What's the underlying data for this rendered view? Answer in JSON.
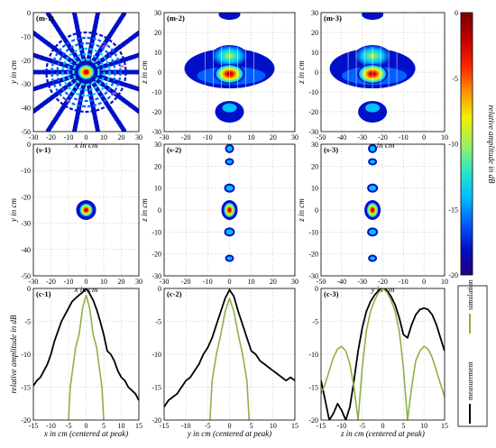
{
  "colors": {
    "measurement": "#000000",
    "simulation": "#8fb04a",
    "colormap": [
      "#20007a",
      "#0010c8",
      "#0060ff",
      "#00c0ff",
      "#30e8c0",
      "#a0f060",
      "#f0f000",
      "#ff9000",
      "#ff2000",
      "#c00000",
      "#7a0000"
    ]
  },
  "colorbar": {
    "label": "relative amplitude in dB",
    "ticks": [
      "0",
      "-5",
      "-10",
      "-15",
      "-20"
    ],
    "range": [
      -20,
      0
    ]
  },
  "legend": {
    "measurement": "measurement",
    "simulation": "simulation"
  },
  "chart_data": [
    {
      "id": "m-1",
      "type": "heatmap",
      "label": "(m-1)",
      "xlabel": "x in cm",
      "ylabel": "y in cm",
      "xlim": [
        -30,
        30
      ],
      "ylim": [
        -50,
        0
      ],
      "xticks": [
        "-30",
        "-20",
        "-10",
        "0",
        "10",
        "20",
        "30"
      ],
      "yticks": [
        "0",
        "-10",
        "-20",
        "-30",
        "-40",
        "-50"
      ],
      "peak": [
        0,
        -25
      ],
      "peak_db": 0
    },
    {
      "id": "m-2",
      "type": "heatmap",
      "label": "(m-2)",
      "xlabel": "",
      "ylabel": "z in cm",
      "xlim": [
        -30,
        30
      ],
      "ylim": [
        -30,
        30
      ],
      "xticks": [
        "-30",
        "-20",
        "-10",
        "0",
        "10",
        "20",
        "30"
      ],
      "yticks": [
        "30",
        "20",
        "10",
        "0",
        "-10",
        "-20",
        "-30"
      ],
      "peak": [
        0,
        0
      ],
      "peak_db": 0
    },
    {
      "id": "m-3",
      "type": "heatmap",
      "label": "(m-3)",
      "xlabel": "y in cm",
      "ylabel": "z in cm",
      "xlim": [
        -50,
        10
      ],
      "ylim": [
        -30,
        30
      ],
      "xticks": [
        "-50",
        "-40",
        "-30",
        "-20",
        "-10",
        "0",
        "10"
      ],
      "yticks": [
        "30",
        "20",
        "10",
        "0",
        "-10",
        "-20",
        "-30"
      ],
      "peak": [
        -25,
        0
      ],
      "peak_db": 0
    },
    {
      "id": "s-1",
      "type": "heatmap",
      "label": "(s-1)",
      "xlabel": "x in cm",
      "ylabel": "y in cm",
      "xlim": [
        -30,
        30
      ],
      "ylim": [
        -50,
        0
      ],
      "xticks": [
        "-30",
        "-20",
        "-10",
        "0",
        "10",
        "20",
        "30"
      ],
      "yticks": [
        "0",
        "-10",
        "-20",
        "-30",
        "-40",
        "-50"
      ],
      "peak": [
        0,
        -25
      ],
      "peak_db": 0
    },
    {
      "id": "s-2",
      "type": "heatmap",
      "label": "(s-2)",
      "xlabel": "",
      "ylabel": "z in cm",
      "xlim": [
        -30,
        30
      ],
      "ylim": [
        -30,
        30
      ],
      "xticks": [
        "-30",
        "-20",
        "-10",
        "0",
        "10",
        "20",
        "30"
      ],
      "yticks": [
        "30",
        "20",
        "10",
        "0",
        "-10",
        "-20",
        "-30"
      ],
      "peak": [
        0,
        0
      ],
      "peak_db": 0
    },
    {
      "id": "s-3",
      "type": "heatmap",
      "label": "(s-3)",
      "xlabel": "y in cm",
      "ylabel": "z in cm",
      "xlim": [
        -50,
        10
      ],
      "ylim": [
        -30,
        30
      ],
      "xticks": [
        "-50",
        "-40",
        "-30",
        "-20",
        "-10",
        "0",
        "10"
      ],
      "yticks": [
        "30",
        "20",
        "10",
        "0",
        "-10",
        "-20",
        "-30"
      ],
      "peak": [
        -25,
        0
      ],
      "peak_db": 0
    },
    {
      "id": "c-1",
      "type": "line",
      "label": "(c-1)",
      "xlabel": "x in cm (centered at peak)",
      "ylabel": "relative amplitude in dB",
      "xlim": [
        -15,
        15
      ],
      "ylim": [
        -20,
        0
      ],
      "xticks": [
        "-15",
        "-10",
        "-5",
        "0",
        "5",
        "10",
        "15"
      ],
      "yticks": [
        "0",
        "-5",
        "-10",
        "-15",
        "-20"
      ],
      "series": [
        {
          "name": "measurement",
          "x": [
            -15,
            -14,
            -13,
            -12,
            -11,
            -10,
            -9,
            -8,
            -7,
            -6,
            -5,
            -4,
            -3,
            -2,
            -1,
            0,
            1,
            2,
            3,
            4,
            5,
            6,
            7,
            8,
            9,
            10,
            11,
            12,
            13,
            14,
            15
          ],
          "values": [
            -14.8,
            -14,
            -13.5,
            -12.5,
            -11.5,
            -10,
            -8,
            -6.5,
            -5,
            -4,
            -3,
            -2,
            -1.5,
            -1,
            -0.6,
            0,
            -0.8,
            -1.8,
            -3.2,
            -5,
            -7,
            -9.5,
            -10,
            -11,
            -12.5,
            -13.5,
            -14,
            -15,
            -15.5,
            -16,
            -17
          ]
        },
        {
          "name": "simulation",
          "x": [
            -5,
            -4.5,
            -4,
            -3,
            -2,
            -1,
            0,
            1,
            2,
            3,
            4,
            4.5,
            5
          ],
          "values": [
            -20,
            -15,
            -13,
            -9,
            -7,
            -3,
            -1,
            -3,
            -7,
            -9,
            -13,
            -15,
            -20
          ]
        }
      ]
    },
    {
      "id": "c-2",
      "type": "line",
      "label": "(c-2)",
      "xlabel": "y in cm (centered at peak)",
      "ylabel": "",
      "xlim": [
        -15,
        15
      ],
      "ylim": [
        -20,
        0
      ],
      "xticks": [
        "-15",
        "-10",
        "-5",
        "0",
        "5",
        "10",
        "15"
      ],
      "yticks": [
        "0",
        "-5",
        "-10",
        "-15",
        "-20"
      ],
      "series": [
        {
          "name": "measurement",
          "x": [
            -15,
            -14,
            -13,
            -12,
            -11,
            -10,
            -9,
            -8,
            -7,
            -6,
            -5,
            -4,
            -3,
            -2,
            -1,
            0,
            1,
            2,
            3,
            4,
            5,
            6,
            7,
            8,
            9,
            10,
            11,
            12,
            13,
            14,
            15
          ],
          "values": [
            -18,
            -17,
            -16.5,
            -16,
            -15,
            -14,
            -13.5,
            -12.5,
            -11.5,
            -10,
            -9,
            -7.5,
            -5.5,
            -3.5,
            -1.5,
            -0.2,
            -1.2,
            -3.5,
            -5.5,
            -7.5,
            -9.5,
            -10,
            -11,
            -11.5,
            -12,
            -12.5,
            -13,
            -13.5,
            -14,
            -13.5,
            -14
          ]
        },
        {
          "name": "simulation",
          "x": [
            -4.5,
            -4,
            -3,
            -2,
            -1,
            0,
            1,
            2,
            3,
            4,
            4.5
          ],
          "values": [
            -20,
            -14,
            -10,
            -7,
            -3.5,
            -1.5,
            -3.5,
            -7,
            -10,
            -14,
            -20
          ]
        }
      ]
    },
    {
      "id": "c-3",
      "type": "line",
      "label": "(c-3)",
      "xlabel": "z in cm (centered at peak)",
      "ylabel": "",
      "xlim": [
        -15,
        15
      ],
      "ylim": [
        -20,
        0
      ],
      "xticks": [
        "-15",
        "-10",
        "-5",
        "0",
        "5",
        "10",
        "15"
      ],
      "yticks": [
        "0",
        "-5",
        "-10",
        "-15",
        "-20"
      ],
      "series": [
        {
          "name": "measurement",
          "x": [
            -15,
            -14,
            -13,
            -12,
            -11,
            -10,
            -9,
            -8,
            -7,
            -6,
            -5,
            -4,
            -3,
            -2,
            -1,
            0,
            1,
            2,
            3,
            4,
            5,
            6,
            7,
            8,
            9,
            10,
            11,
            12,
            13,
            14,
            15
          ],
          "values": [
            -14,
            -17,
            -20,
            -19,
            -17.5,
            -18.5,
            -20,
            -18,
            -14,
            -9.5,
            -6,
            -3.5,
            -2,
            -1,
            -0.3,
            0,
            -0.3,
            -1.2,
            -2.5,
            -4.5,
            -7,
            -7.5,
            -5.5,
            -4,
            -3.2,
            -3,
            -3.2,
            -4,
            -5.5,
            -7.5,
            -9.5
          ]
        },
        {
          "name": "simulation",
          "x": [
            -15,
            -14,
            -13,
            -12,
            -11,
            -10,
            -9,
            -8,
            -7,
            -6,
            -5,
            -4,
            -3,
            -2,
            -1,
            0,
            1,
            2,
            3,
            4,
            5,
            6,
            7,
            8,
            9,
            10,
            11,
            12,
            13,
            14,
            15
          ],
          "values": [
            -16,
            -14.5,
            -12.5,
            -10.5,
            -9.2,
            -8.8,
            -9.5,
            -11.5,
            -15,
            -20,
            -12,
            -6.5,
            -3.5,
            -1.8,
            -0.6,
            0,
            -0.6,
            -1.8,
            -3.5,
            -6.5,
            -12,
            -20,
            -15,
            -11,
            -9.5,
            -8.8,
            -9.2,
            -10.5,
            -12.5,
            -14.5,
            -16.5
          ]
        }
      ]
    }
  ]
}
